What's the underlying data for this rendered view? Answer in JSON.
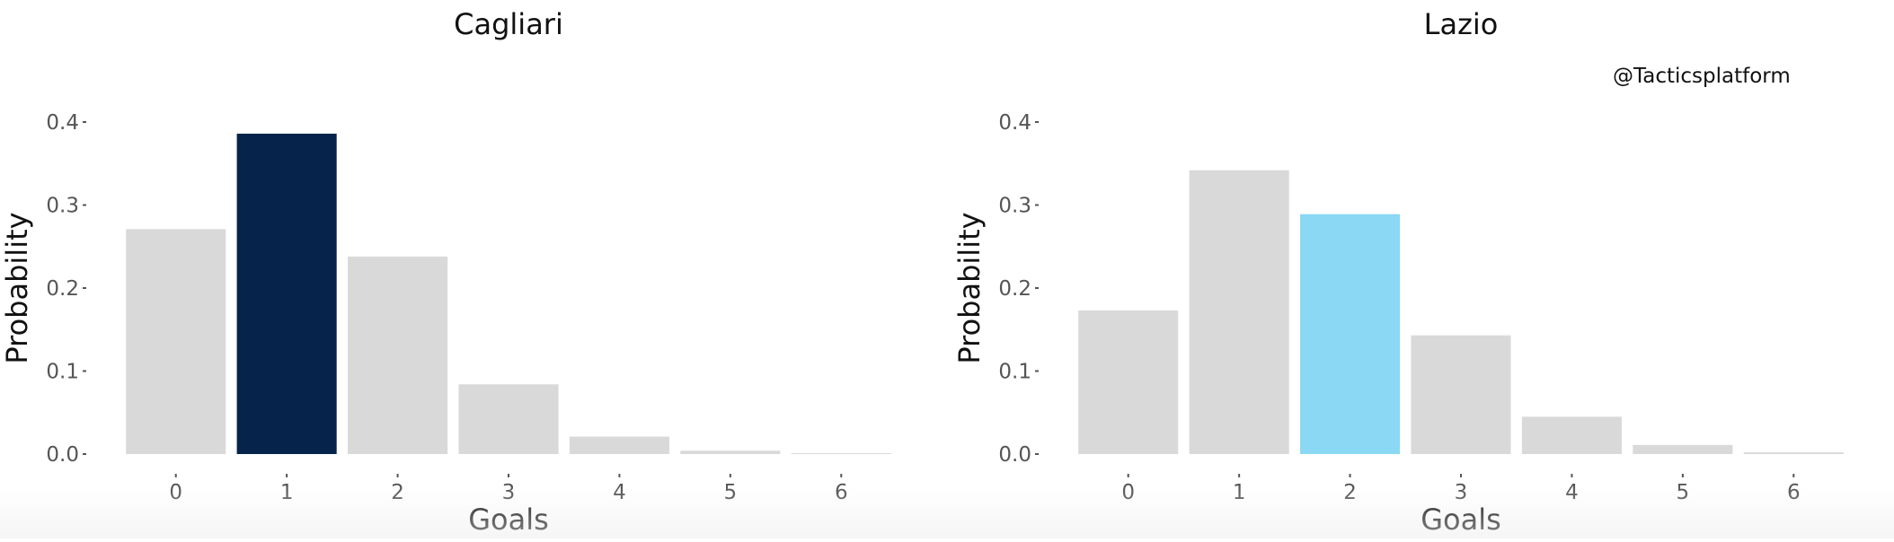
{
  "watermark": "@Tacticsplatform",
  "chart_data": [
    {
      "type": "bar",
      "title": "Cagliari",
      "xlabel": "Goals",
      "ylabel": "Probability",
      "categories": [
        "0",
        "1",
        "2",
        "3",
        "4",
        "5",
        "6"
      ],
      "values": [
        0.271,
        0.386,
        0.238,
        0.084,
        0.021,
        0.004,
        0.001
      ],
      "highlight_index": 1,
      "highlight_color": "#06244b",
      "bar_color": "#d9d9d9",
      "ylim": [
        0,
        0.4
      ],
      "yticks": [
        "0.0",
        "0.1",
        "0.2",
        "0.3",
        "0.4"
      ],
      "grid": false
    },
    {
      "type": "bar",
      "title": "Lazio",
      "xlabel": "Goals",
      "ylabel": "Probability",
      "categories": [
        "0",
        "1",
        "2",
        "3",
        "4",
        "5",
        "6"
      ],
      "values": [
        0.173,
        0.342,
        0.289,
        0.143,
        0.045,
        0.011,
        0.002
      ],
      "highlight_index": 2,
      "highlight_color": "#8ad8f4",
      "bar_color": "#d9d9d9",
      "ylim": [
        0,
        0.4
      ],
      "yticks": [
        "0.0",
        "0.1",
        "0.2",
        "0.3",
        "0.4"
      ],
      "grid": false
    }
  ]
}
